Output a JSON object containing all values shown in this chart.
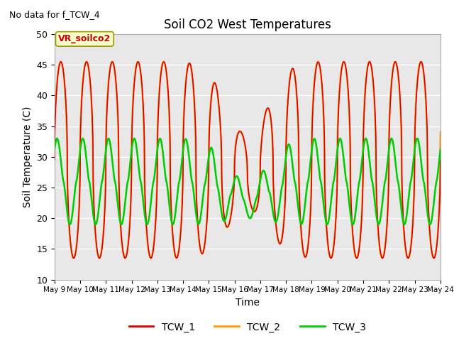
{
  "title": "Soil CO2 West Temperatures",
  "subtitle": "No data for f_TCW_4",
  "xlabel": "Time",
  "ylabel": "Soil Temperature (C)",
  "ylim": [
    10,
    50
  ],
  "yticks": [
    10,
    15,
    20,
    25,
    30,
    35,
    40,
    45,
    50
  ],
  "xtick_labels": [
    "May 9",
    "May 10",
    "May 11",
    "May 12",
    "May 13",
    "May 14",
    "May 15",
    "May 16",
    "May 17",
    "May 18",
    "May 19",
    "May 20",
    "May 21",
    "May 22",
    "May 23",
    "May 24"
  ],
  "annotation_text": "VR_soilco2",
  "annotation_color": "#cc0000",
  "annotation_bg": "#ffffcc",
  "annotation_edge": "#999900",
  "line_colors": {
    "TCW_1": "#dd0000",
    "TCW_2": "#ff9900",
    "TCW_3": "#00cc00"
  },
  "background_color": "#e8e8e8",
  "grid_color": "#ffffff"
}
